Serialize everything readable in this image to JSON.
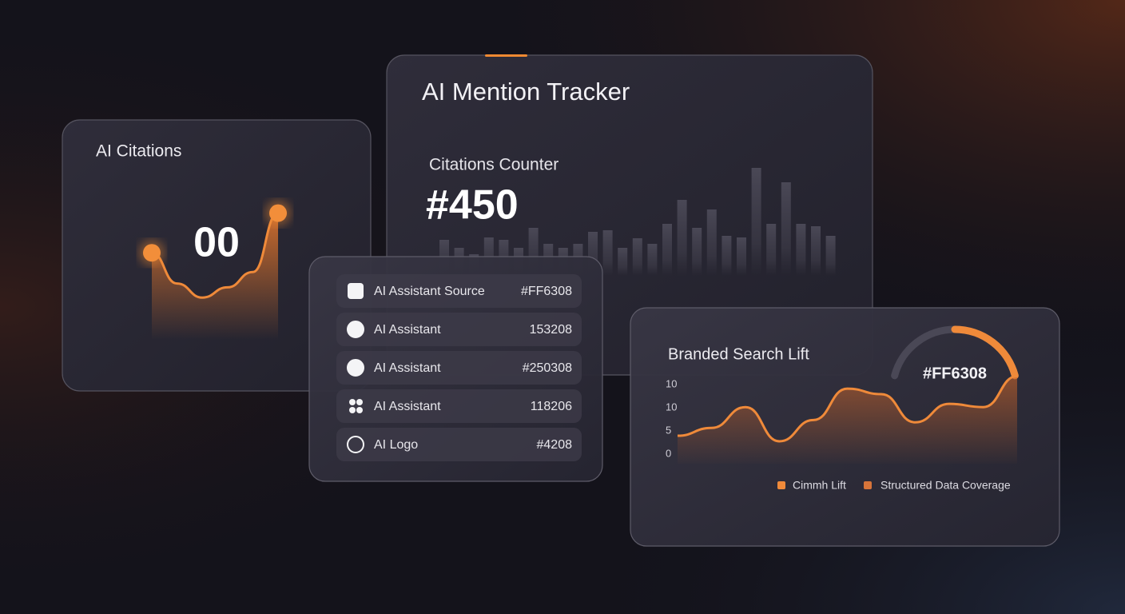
{
  "left_card": {
    "title": "AI Citations",
    "value": "00",
    "curve": [
      6.8,
      4.4,
      3.3,
      4.1,
      5.3,
      9.9
    ],
    "ylim": [
      0,
      10
    ]
  },
  "tracker": {
    "title": "AI Mention Tracker",
    "counter_label": "Citations Counter",
    "counter_value": "#450",
    "bars": [
      45,
      35,
      27,
      48,
      45,
      35,
      60,
      40,
      35,
      40,
      55,
      57,
      35,
      47,
      40,
      65,
      95,
      60,
      83,
      50,
      48,
      135,
      65,
      117,
      65,
      62,
      50
    ],
    "ylim": [
      0,
      140
    ]
  },
  "sources": {
    "rows": [
      {
        "label": "AI Assistant Source",
        "value": "#FF6308"
      },
      {
        "label": "AI Assistant",
        "value": "153208"
      },
      {
        "label": "AI Assistant",
        "value": "#250308"
      },
      {
        "label": "AI Assistant",
        "value": "118206"
      },
      {
        "label": "AI Logo",
        "value": "#4208"
      }
    ]
  },
  "search_lift": {
    "title": "Branded Search Lift",
    "gauge_label": "#FF6308",
    "gauge_value": 0.5,
    "gauge_range": [
      0,
      1
    ],
    "yticks": [
      "10",
      "10",
      "5",
      "0"
    ],
    "curve": [
      3.8,
      5.5,
      10,
      2.6,
      7.2,
      14,
      12.8,
      6.7,
      10.7,
      10,
      16.7
    ],
    "ylim": [
      0,
      18
    ],
    "legend": [
      "Cimmh Lift",
      "Structured Data Coverage"
    ]
  }
}
